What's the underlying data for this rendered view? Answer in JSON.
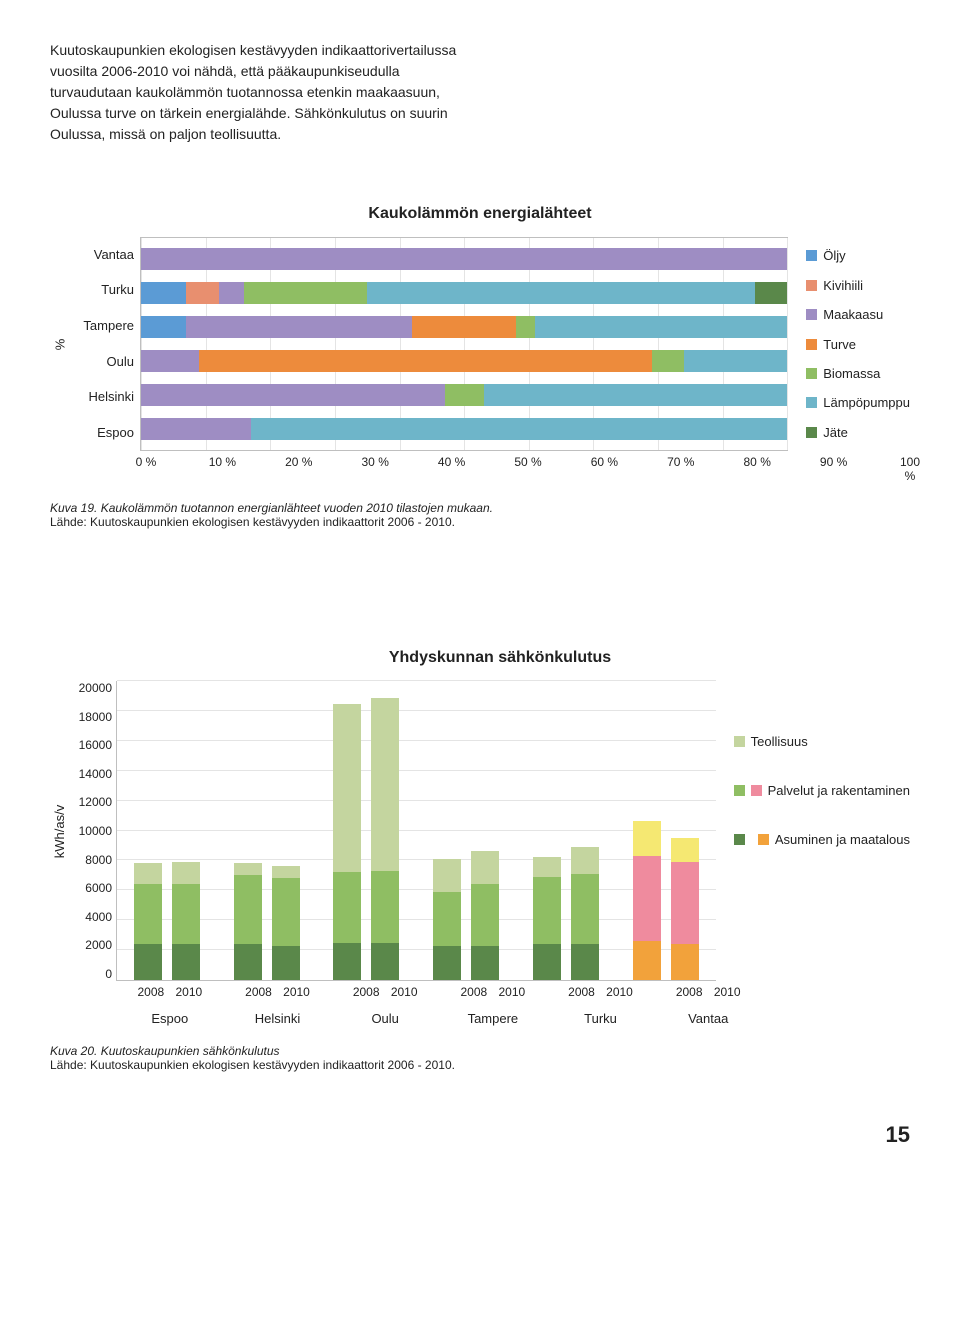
{
  "page_number": "15",
  "intro_text": "Kuutoskaupunkien ekologisen kestävyyden indikaattorivertailussa vuosilta 2006-2010 voi nähdä, että pääkaupunkiseudulla turvaudutaan kaukolämmön tuotannossa etenkin maakaasuun, Oulussa turve on tärkein energialähde. Sähkönkulutus on suurin Oulussa, missä on paljon teollisuutta.",
  "chart1": {
    "type": "stacked_bar_horizontal",
    "title": "Kaukolämmön energialähteet",
    "y_axis_label": "%",
    "categories": [
      "Vantaa",
      "Turku",
      "Tampere",
      "Oulu",
      "Helsinki",
      "Espoo"
    ],
    "legend_labels": [
      "Öljy",
      "Kivihiili",
      "Maakaasu",
      "Turve",
      "Biomassa",
      "Lämpöpumppu",
      "Jäte"
    ],
    "legend_colors": [
      "#5b9bd5",
      "#e88f6f",
      "#9e8dc3",
      "#ed8b3c",
      "#8fbe63",
      "#6eb5c9",
      "#5a884a"
    ],
    "series_colors": {
      "Öljy": "#5b9bd5",
      "Kivihiili": "#e88f6f",
      "Maakaasu": "#9e8dc3",
      "Turve": "#ed8b3c",
      "Biomassa": "#8fbe63",
      "Lämpöpumppu": "#6eb5c9",
      "Jäte": "#5a884a"
    },
    "x_ticks": [
      "0 %",
      "10 %",
      "20 %",
      "30 %",
      "40 %",
      "50 %",
      "60 %",
      "70 %",
      "80 %",
      "90 %",
      "100 %"
    ],
    "data": {
      "Vantaa": {
        "Öljy": 0,
        "Kivihiili": 0,
        "Maakaasu": 100,
        "Turve": 0,
        "Biomassa": 0,
        "Lämpöpumppu": 0,
        "Jäte": 0
      },
      "Turku": {
        "Öljy": 7,
        "Kivihiili": 5,
        "Maakaasu": 4,
        "Turve": 0,
        "Biomassa": 19,
        "Lämpöpumppu": 60,
        "Jäte": 5
      },
      "Tampere": {
        "Öljy": 7,
        "Kivihiili": 0,
        "Maakaasu": 35,
        "Turve": 16,
        "Biomassa": 3,
        "Lämpöpumppu": 39,
        "Jäte": 0
      },
      "Oulu": {
        "Öljy": 0,
        "Kivihiili": 0,
        "Maakaasu": 9,
        "Turve": 70,
        "Biomassa": 5,
        "Lämpöpumppu": 16,
        "Jäte": 0
      },
      "Helsinki": {
        "Öljy": 0,
        "Kivihiili": 0,
        "Maakaasu": 47,
        "Turve": 0,
        "Biomassa": 6,
        "Lämpöpumppu": 47,
        "Jäte": 0
      },
      "Espoo": {
        "Öljy": 0,
        "Kivihiili": 0,
        "Maakaasu": 17,
        "Turve": 0,
        "Biomassa": 0,
        "Lämpöpumppu": 83,
        "Jäte": 0
      }
    },
    "caption_italic": "Kuva 19. Kaukolämmön tuotannon energianlähteet vuoden 2010 tilastojen mukaan.",
    "caption_source": "Lähde: Kuutoskaupunkien ekologisen kestävyyden indikaattorit 2006 - 2010."
  },
  "chart2": {
    "type": "stacked_bar_vertical_grouped",
    "title": "Yhdyskunnan sähkönkulutus",
    "y_axis_label": "kWh/as/v",
    "y_max": 20000,
    "y_tick_step": 2000,
    "y_ticks": [
      "0",
      "2000",
      "4000",
      "6000",
      "8000",
      "10000",
      "12000",
      "14000",
      "16000",
      "18000",
      "20000"
    ],
    "legend_labels": [
      "Teollisuus",
      "Palvelut ja rakentaminen",
      "Asuminen ja maatalous"
    ],
    "legend_colors": [
      "#c4d59f",
      "#8fbe63",
      "#5a884a"
    ],
    "vantaa_legend_colors": [
      "#f5e872",
      "#ef8b9e",
      "#f2a23b"
    ],
    "cities": [
      "Espoo",
      "Helsinki",
      "Oulu",
      "Tampere",
      "Turku",
      "Vantaa"
    ],
    "years": [
      "2008",
      "2010"
    ],
    "data": {
      "Espoo": {
        "2008": {
          "a": 2400,
          "p": 4000,
          "t": 1400
        },
        "2010": {
          "a": 2400,
          "p": 4000,
          "t": 1500
        }
      },
      "Helsinki": {
        "2008": {
          "a": 2400,
          "p": 4600,
          "t": 800
        },
        "2010": {
          "a": 2300,
          "p": 4500,
          "t": 800
        }
      },
      "Oulu": {
        "2008": {
          "a": 2500,
          "p": 4700,
          "t": 11200
        },
        "2010": {
          "a": 2500,
          "p": 4800,
          "t": 11500
        }
      },
      "Tampere": {
        "2008": {
          "a": 2300,
          "p": 3600,
          "t": 2200
        },
        "2010": {
          "a": 2300,
          "p": 4100,
          "t": 2200
        }
      },
      "Turku": {
        "2008": {
          "a": 2400,
          "p": 4500,
          "t": 1300
        },
        "2010": {
          "a": 2400,
          "p": 4700,
          "t": 1800
        }
      },
      "Vantaa": {
        "2008": {
          "a": 2600,
          "p": 5700,
          "t": 2300
        },
        "2010": {
          "a": 2400,
          "p": 5500,
          "t": 1600
        }
      }
    },
    "caption_italic": "Kuva 20. Kuutoskaupunkien sähkönkulutus",
    "caption_source": "Lähde: Kuutoskaupunkien ekologisen kestävyyden indikaattorit 2006 - 2010."
  }
}
